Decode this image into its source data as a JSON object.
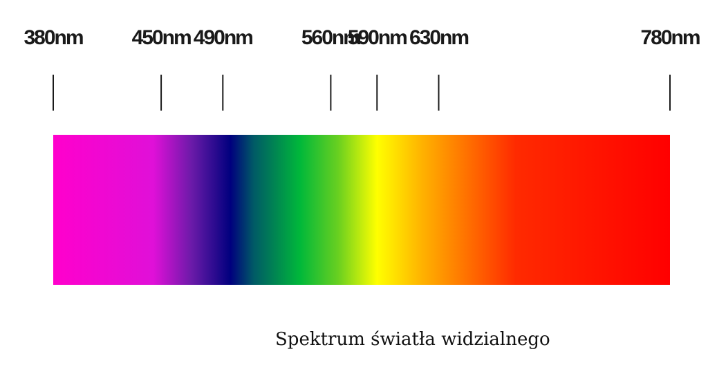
{
  "axis": {
    "min": 380,
    "max": 780,
    "ticks": [
      {
        "value": 380,
        "label": "380nm"
      },
      {
        "value": 450,
        "label": "450nm"
      },
      {
        "value": 490,
        "label": "490nm"
      },
      {
        "value": 560,
        "label": "560nm"
      },
      {
        "value": 590,
        "label": "590nm"
      },
      {
        "value": 630,
        "label": "630nm"
      },
      {
        "value": 780,
        "label": "780nm"
      }
    ]
  },
  "spectrum": {
    "stops": [
      {
        "value": 380,
        "color": "#ff00cc"
      },
      {
        "value": 445,
        "color": "#e010d8"
      },
      {
        "value": 470,
        "color": "#6a1aa8"
      },
      {
        "value": 495,
        "color": "#00007e"
      },
      {
        "value": 510,
        "color": "#005a66"
      },
      {
        "value": 540,
        "color": "#00b83a"
      },
      {
        "value": 565,
        "color": "#6ad020"
      },
      {
        "value": 590,
        "color": "#ffff00"
      },
      {
        "value": 620,
        "color": "#ffb000"
      },
      {
        "value": 680,
        "color": "#ff2a00"
      },
      {
        "value": 780,
        "color": "#ff0000"
      }
    ]
  },
  "caption": "Spektrum światła widzialnego"
}
